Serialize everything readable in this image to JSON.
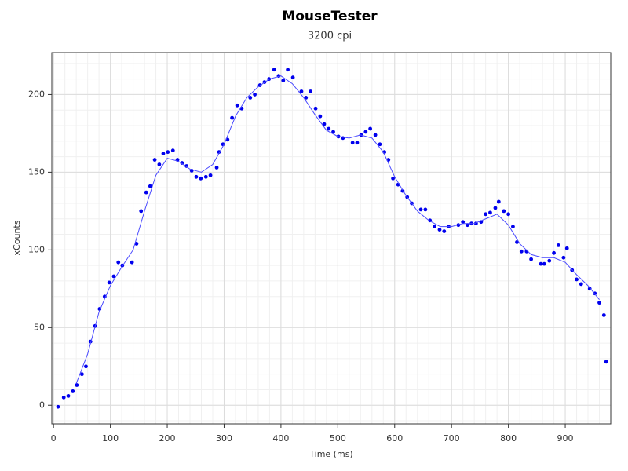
{
  "chart_data": {
    "type": "scatter",
    "title": "MouseTester",
    "subtitle": "3200 cpi",
    "x_label": "Time (ms)",
    "y_label": "xCounts",
    "xlim": [
      -3,
      980
    ],
    "ylim": [
      -12,
      227
    ],
    "xticks": [
      0,
      100,
      200,
      300,
      400,
      500,
      600,
      700,
      800,
      900
    ],
    "yticks": [
      0,
      50,
      100,
      150,
      200
    ],
    "grid": true,
    "minor_grid": true,
    "series": [
      {
        "kind": "points",
        "color": "#0000ee",
        "x": [
          8,
          18,
          26,
          34,
          41,
          50,
          57,
          65,
          73,
          81,
          90,
          98,
          106,
          114,
          121,
          138,
          146,
          154,
          163,
          170,
          178,
          186,
          193,
          201,
          210,
          218,
          226,
          234,
          243,
          251,
          259,
          268,
          276,
          287,
          291,
          298,
          306,
          314,
          323,
          331,
          346,
          354,
          363,
          371,
          379,
          388,
          396,
          404,
          412,
          421,
          436,
          444,
          452,
          461,
          469,
          476,
          484,
          492,
          501,
          509,
          526,
          534,
          541,
          549,
          557,
          566,
          574,
          582,
          589,
          597,
          606,
          614,
          622,
          630,
          646,
          654,
          662,
          670,
          679,
          687,
          695,
          712,
          720,
          728,
          735,
          743,
          752,
          760,
          768,
          777,
          783,
          792,
          800,
          808,
          815,
          823,
          832,
          840,
          857,
          863,
          872,
          880,
          888,
          897,
          903,
          912,
          920,
          928,
          943,
          952,
          960,
          968,
          972
        ],
        "values": [
          -1,
          5,
          6,
          9,
          13,
          20,
          25,
          41,
          51,
          62,
          70,
          79,
          83,
          92,
          90,
          92,
          104,
          125,
          137,
          141,
          158,
          155,
          162,
          163,
          164,
          158,
          156,
          154,
          151,
          147,
          146,
          147,
          148,
          153,
          163,
          168,
          171,
          185,
          193,
          191,
          198,
          200,
          206,
          208,
          210,
          216,
          212,
          209,
          216,
          211,
          202,
          198,
          202,
          191,
          186,
          181,
          178,
          176,
          173,
          172,
          169,
          169,
          174,
          176,
          178,
          174,
          168,
          163,
          158,
          146,
          142,
          138,
          134,
          130,
          126,
          126,
          119,
          115,
          113,
          112,
          115,
          116,
          118,
          116,
          117,
          117,
          118,
          123,
          124,
          127,
          131,
          125,
          123,
          115,
          105,
          99,
          99,
          94,
          91,
          91,
          93,
          98,
          103,
          95,
          101,
          87,
          81,
          78,
          75,
          72,
          66,
          58,
          28
        ]
      },
      {
        "kind": "line",
        "color": "#4a4aff",
        "x": [
          40,
          60,
          80,
          100,
          120,
          140,
          160,
          180,
          200,
          220,
          240,
          260,
          280,
          300,
          320,
          340,
          360,
          380,
          400,
          420,
          440,
          460,
          480,
          500,
          520,
          540,
          560,
          580,
          600,
          620,
          640,
          660,
          680,
          700,
          720,
          740,
          760,
          780,
          800,
          820,
          840,
          860,
          880,
          900,
          920,
          940,
          960
        ],
        "values": [
          14,
          33,
          60,
          77,
          89,
          100,
          125,
          148,
          159,
          157,
          152,
          150,
          155,
          168,
          186,
          198,
          205,
          210,
          212,
          207,
          198,
          187,
          177,
          173,
          172,
          174,
          172,
          163,
          147,
          135,
          125,
          119,
          115,
          115,
          117,
          117,
          120,
          123,
          116,
          104,
          97,
          95,
          95,
          92,
          84,
          77,
          68
        ]
      }
    ]
  }
}
